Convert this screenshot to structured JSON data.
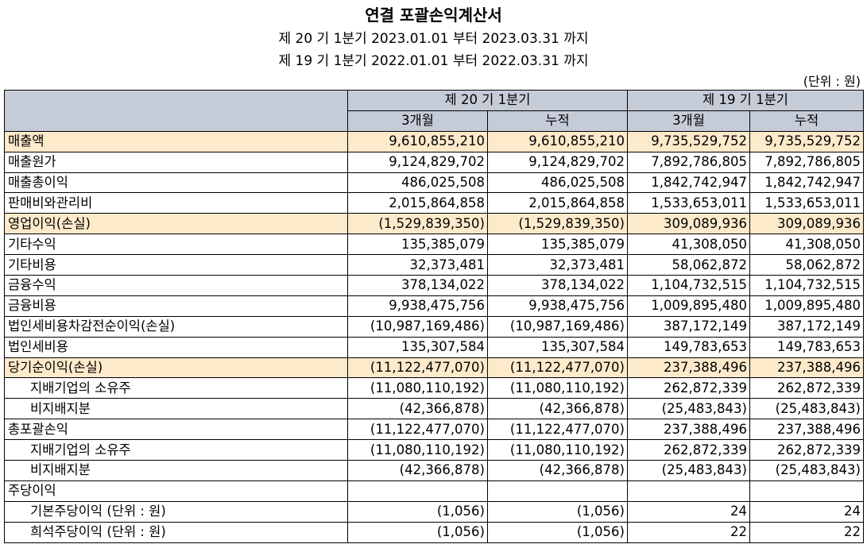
{
  "title": "연결 포괄손익계산서",
  "period1": "제 20 기 1분기 2023.01.01 부터 2023.03.31 까지",
  "period2": "제 19 기 1분기 2022.01.01 부터 2022.03.31 까지",
  "unit": "(단위 : 원)",
  "headers": {
    "fy20": "제 20 기 1분기",
    "fy19": "제 19 기 1분기",
    "three_month": "3개월",
    "cumulative": "누적"
  },
  "rows": [
    {
      "label": "매출액",
      "indent": false,
      "highlight": true,
      "values": [
        "9,610,855,210",
        "9,610,855,210",
        "9,735,529,752",
        "9,735,529,752"
      ]
    },
    {
      "label": "매출원가",
      "indent": false,
      "highlight": false,
      "values": [
        "9,124,829,702",
        "9,124,829,702",
        "7,892,786,805",
        "7,892,786,805"
      ]
    },
    {
      "label": "매출총이익",
      "indent": false,
      "highlight": false,
      "values": [
        "486,025,508",
        "486,025,508",
        "1,842,742,947",
        "1,842,742,947"
      ]
    },
    {
      "label": "판매비와관리비",
      "indent": false,
      "highlight": false,
      "values": [
        "2,015,864,858",
        "2,015,864,858",
        "1,533,653,011",
        "1,533,653,011"
      ]
    },
    {
      "label": "영업이익(손실)",
      "indent": false,
      "highlight": true,
      "values": [
        "(1,529,839,350)",
        "(1,529,839,350)",
        "309,089,936",
        "309,089,936"
      ]
    },
    {
      "label": "기타수익",
      "indent": false,
      "highlight": false,
      "values": [
        "135,385,079",
        "135,385,079",
        "41,308,050",
        "41,308,050"
      ]
    },
    {
      "label": "기타비용",
      "indent": false,
      "highlight": false,
      "values": [
        "32,373,481",
        "32,373,481",
        "58,062,872",
        "58,062,872"
      ]
    },
    {
      "label": "금융수익",
      "indent": false,
      "highlight": false,
      "values": [
        "378,134,022",
        "378,134,022",
        "1,104,732,515",
        "1,104,732,515"
      ]
    },
    {
      "label": "금융비용",
      "indent": false,
      "highlight": false,
      "values": [
        "9,938,475,756",
        "9,938,475,756",
        "1,009,895,480",
        "1,009,895,480"
      ]
    },
    {
      "label": "법인세비용차감전순이익(손실)",
      "indent": false,
      "highlight": false,
      "values": [
        "(10,987,169,486)",
        "(10,987,169,486)",
        "387,172,149",
        "387,172,149"
      ]
    },
    {
      "label": "법인세비용",
      "indent": false,
      "highlight": false,
      "values": [
        "135,307,584",
        "135,307,584",
        "149,783,653",
        "149,783,653"
      ]
    },
    {
      "label": "당기순이익(손실)",
      "indent": false,
      "highlight": true,
      "values": [
        "(11,122,477,070)",
        "(11,122,477,070)",
        "237,388,496",
        "237,388,496"
      ]
    },
    {
      "label": "지배기업의 소유주",
      "indent": true,
      "highlight": false,
      "values": [
        "(11,080,110,192)",
        "(11,080,110,192)",
        "262,872,339",
        "262,872,339"
      ]
    },
    {
      "label": "비지배지분",
      "indent": true,
      "highlight": false,
      "values": [
        "(42,366,878)",
        "(42,366,878)",
        "(25,483,843)",
        "(25,483,843)"
      ]
    },
    {
      "label": "총포괄손익",
      "indent": false,
      "highlight": false,
      "values": [
        "(11,122,477,070)",
        "(11,122,477,070)",
        "237,388,496",
        "237,388,496"
      ]
    },
    {
      "label": "지배기업의 소유주",
      "indent": true,
      "highlight": false,
      "values": [
        "(11,080,110,192)",
        "(11,080,110,192)",
        "262,872,339",
        "262,872,339"
      ]
    },
    {
      "label": "비지배지분",
      "indent": true,
      "highlight": false,
      "values": [
        "(42,366,878)",
        "(42,366,878)",
        "(25,483,843)",
        "(25,483,843)"
      ]
    },
    {
      "label": "주당이익",
      "indent": false,
      "highlight": false,
      "values": [
        "",
        "",
        "",
        ""
      ]
    },
    {
      "label": "기본주당이익 (단위 : 원)",
      "indent": true,
      "highlight": false,
      "values": [
        "(1,056)",
        "(1,056)",
        "24",
        "24"
      ]
    },
    {
      "label": "희석주당이익 (단위 : 원)",
      "indent": true,
      "highlight": false,
      "values": [
        "(1,056)",
        "(1,056)",
        "22",
        "22"
      ]
    }
  ]
}
